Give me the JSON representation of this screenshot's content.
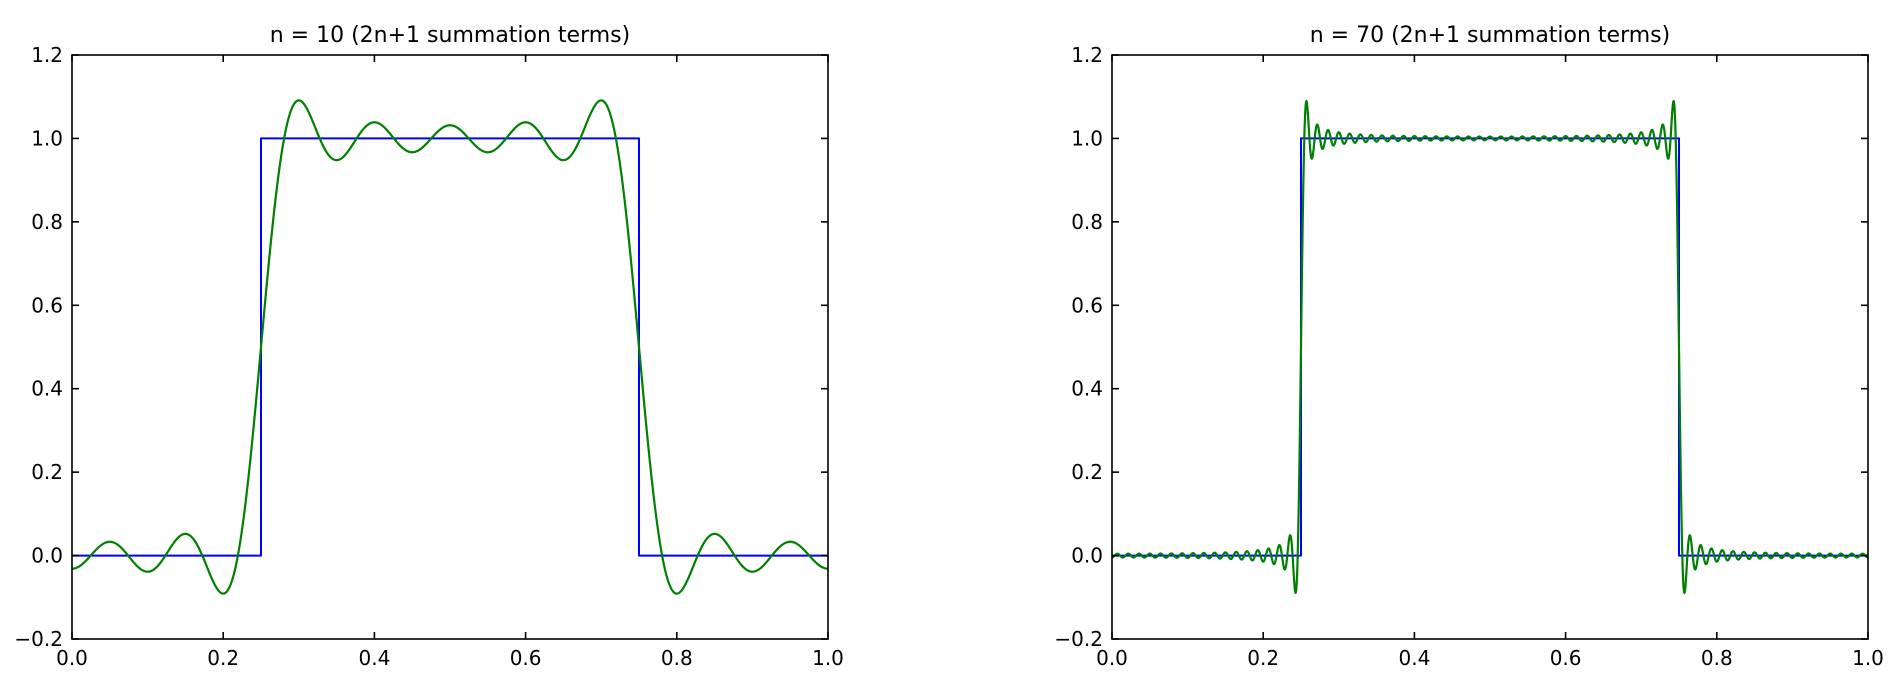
{
  "figure": {
    "background": "#ffffff",
    "description": "Two side-by-side line plots showing Fourier partial-sum approximations of a square wave (Gibbs phenomenon)"
  },
  "chart_data": [
    {
      "type": "line",
      "title": "n = 10 (2n+1 summation terms)",
      "xlabel": "",
      "ylabel": "",
      "xlim": [
        0.0,
        1.0
      ],
      "ylim": [
        -0.2,
        1.2
      ],
      "grid": false,
      "legend": null,
      "xticks": {
        "values": [
          0.0,
          0.2,
          0.4,
          0.6,
          0.8,
          1.0
        ],
        "labels": [
          "0.0",
          "0.2",
          "0.4",
          "0.6",
          "0.8",
          "1.0"
        ]
      },
      "yticks": {
        "values": [
          -0.2,
          0.0,
          0.2,
          0.4,
          0.6,
          0.8,
          1.0,
          1.2
        ],
        "labels": [
          "−0.2",
          "0.0",
          "0.2",
          "0.4",
          "0.6",
          "0.8",
          "1.0",
          "1.2"
        ]
      },
      "series": [
        {
          "name": "square-wave-exact",
          "color": "#0000ff",
          "line_width": 2,
          "points": [
            [
              0.0,
              0.0
            ],
            [
              0.25,
              0.0
            ],
            [
              0.25,
              1.0
            ],
            [
              0.75,
              1.0
            ],
            [
              0.75,
              0.0
            ],
            [
              1.0,
              0.0
            ]
          ]
        },
        {
          "name": "fourier-partial-sum",
          "color": "#008000",
          "line_width": 2.2,
          "generator": {
            "kind": "fourier_square_wave_partial_sum",
            "n": 10,
            "terms": "2n+1",
            "rise": 0.25,
            "fall": 0.75,
            "low": 0.0,
            "high": 1.0,
            "samples": 1400
          },
          "gibbs_overshoot_peak": 1.09,
          "gibbs_undershoot_trough": -0.09
        }
      ]
    },
    {
      "type": "line",
      "title": "n = 70 (2n+1 summation terms)",
      "xlabel": "",
      "ylabel": "",
      "xlim": [
        0.0,
        1.0
      ],
      "ylim": [
        -0.2,
        1.2
      ],
      "grid": false,
      "legend": null,
      "xticks": {
        "values": [
          0.0,
          0.2,
          0.4,
          0.6,
          0.8,
          1.0
        ],
        "labels": [
          "0.0",
          "0.2",
          "0.4",
          "0.6",
          "0.8",
          "1.0"
        ]
      },
      "yticks": {
        "values": [
          -0.2,
          0.0,
          0.2,
          0.4,
          0.6,
          0.8,
          1.0,
          1.2
        ],
        "labels": [
          "−0.2",
          "0.0",
          "0.2",
          "0.4",
          "0.6",
          "0.8",
          "1.0",
          "1.2"
        ]
      },
      "series": [
        {
          "name": "square-wave-exact",
          "color": "#0000ff",
          "line_width": 2,
          "points": [
            [
              0.0,
              0.0
            ],
            [
              0.25,
              0.0
            ],
            [
              0.25,
              1.0
            ],
            [
              0.75,
              1.0
            ],
            [
              0.75,
              0.0
            ],
            [
              1.0,
              0.0
            ]
          ]
        },
        {
          "name": "fourier-partial-sum",
          "color": "#008000",
          "line_width": 2.2,
          "generator": {
            "kind": "fourier_square_wave_partial_sum",
            "n": 70,
            "terms": "2n+1",
            "rise": 0.25,
            "fall": 0.75,
            "low": 0.0,
            "high": 1.0,
            "samples": 3200
          },
          "gibbs_overshoot_peak": 1.09,
          "gibbs_undershoot_trough": -0.09
        }
      ]
    }
  ]
}
